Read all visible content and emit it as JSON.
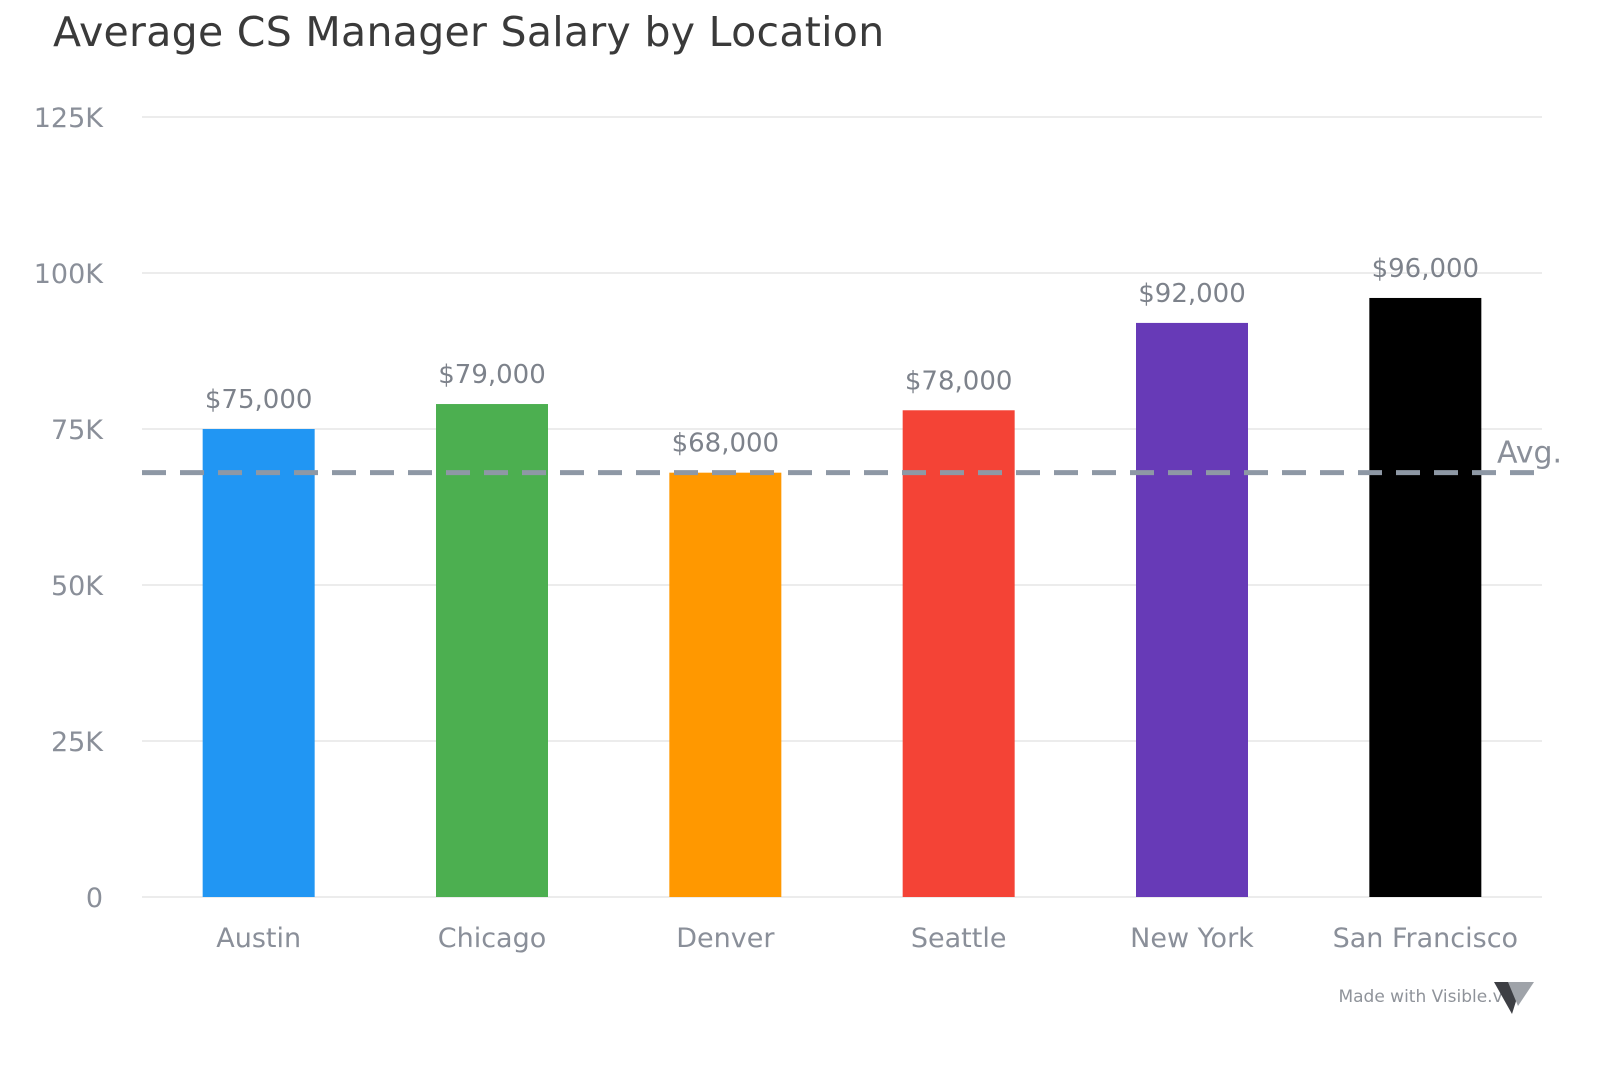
{
  "chart_data": {
    "type": "bar",
    "title": "Average CS Manager Salary by Location",
    "xlabel": "",
    "ylabel": "",
    "categories": [
      "Austin",
      "Chicago",
      "Denver",
      "Seattle",
      "New York",
      "San Francisco"
    ],
    "values": [
      75000,
      79000,
      68000,
      78000,
      92000,
      96000
    ],
    "data_labels": [
      "$75,000",
      "$79,000",
      "$68,000",
      "$78,000",
      "$92,000",
      "$96,000"
    ],
    "colors": [
      "#2196f3",
      "#4caf50",
      "#ff9800",
      "#f44336",
      "#673ab7",
      "#000000"
    ],
    "ylim": [
      0,
      125000
    ],
    "yticks": [
      0,
      25000,
      50000,
      75000,
      100000,
      125000
    ],
    "ytick_labels": [
      "0",
      "25K",
      "50K",
      "75K",
      "100K",
      "125K"
    ],
    "grid": true,
    "average_line": {
      "value": 68000,
      "label": "Avg.",
      "color": "#8e98a5"
    }
  },
  "footer": {
    "credit": "Made with Visible.vc",
    "logo_icon": "visible-logo-icon"
  }
}
